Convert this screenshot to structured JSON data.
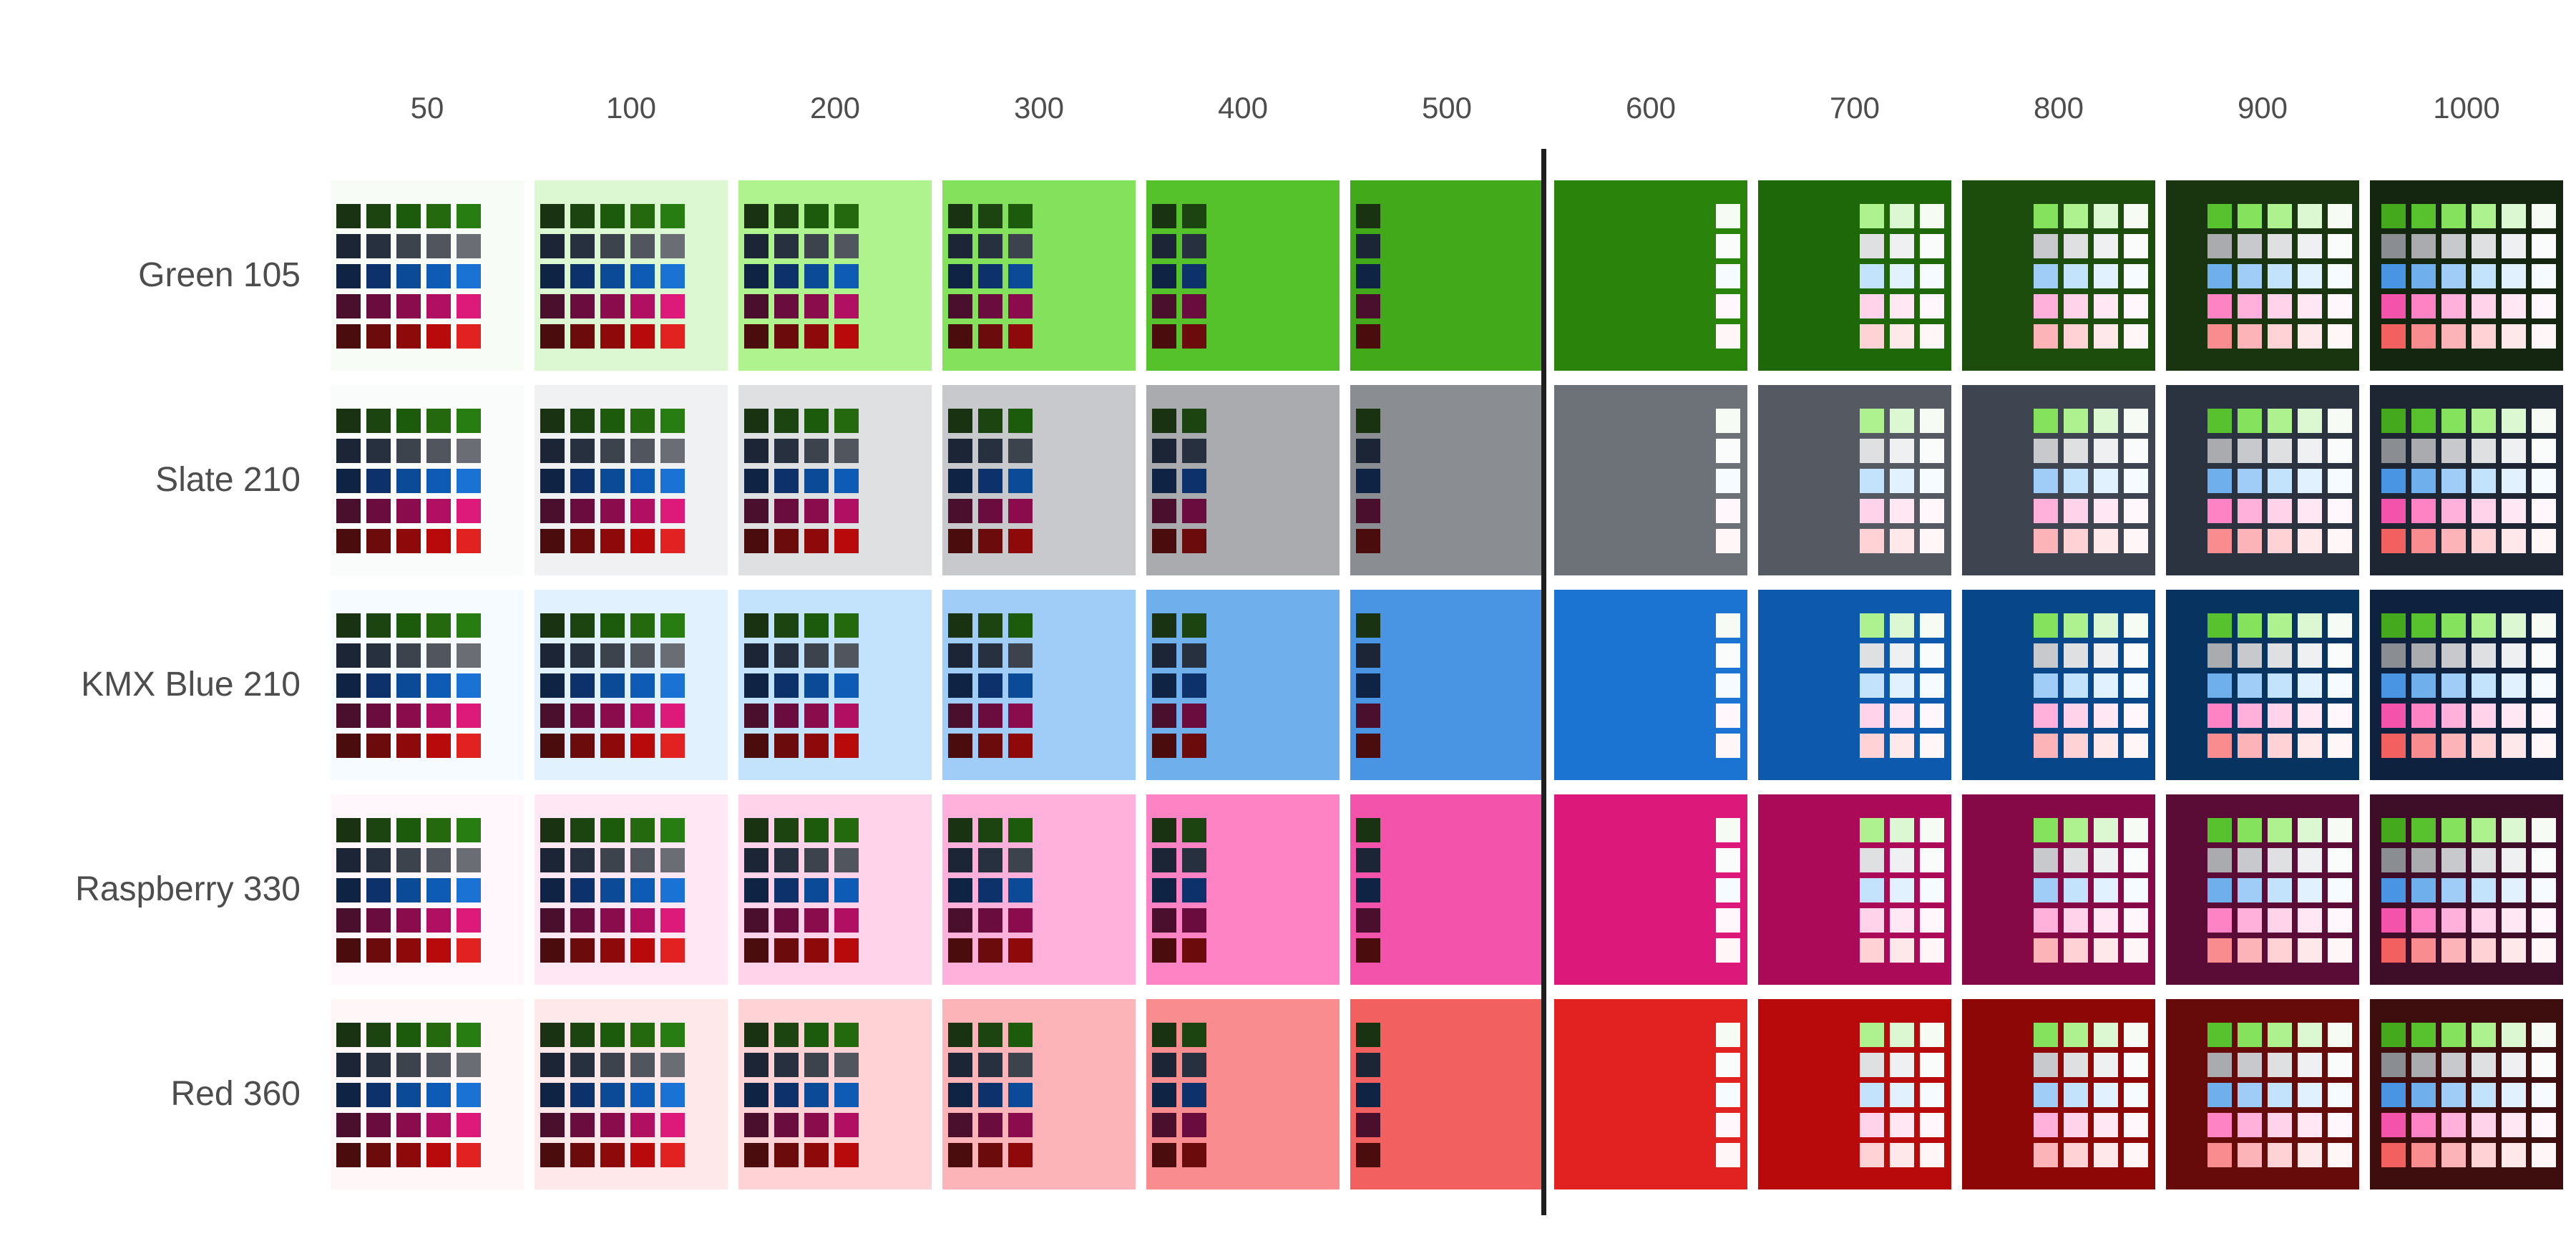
{
  "levels": [
    "50",
    "100",
    "200",
    "300",
    "400",
    "500",
    "600",
    "700",
    "800",
    "900",
    "1000"
  ],
  "divider_after_level": "500",
  "hues": [
    {
      "name": "Green 105",
      "colors": [
        "#f8fcf6",
        "#dcf8d2",
        "#aff38e",
        "#83e15b",
        "#56c22b",
        "#41a91a",
        "#2a840c",
        "#1e680a",
        "#1c4d0c",
        "#19350f",
        "#142510"
      ]
    },
    {
      "name": "Slate 210",
      "colors": [
        "#fafbfb",
        "#f0f1f3",
        "#dfe0e2",
        "#c8c9cc",
        "#a9abaf",
        "#8a8d91",
        "#6d7279",
        "#555a62",
        "#3f4550",
        "#2c3340",
        "#1e2533"
      ]
    },
    {
      "name": "KMX Blue 210",
      "colors": [
        "#f5fbff",
        "#e2f1fe",
        "#c3e2fc",
        "#a0cdf7",
        "#6fb0ec",
        "#4a95e3",
        "#1b73d2",
        "#0d59ad",
        "#074689",
        "#06335f",
        "#0e223f"
      ]
    },
    {
      "name": "Raspberry 330",
      "colors": [
        "#fff7fb",
        "#ffe7f3",
        "#ffd3ea",
        "#ffb1db",
        "#fd83c4",
        "#f353aa",
        "#dc197a",
        "#ab0a59",
        "#850947",
        "#5a0c36",
        "#3e0e28"
      ]
    },
    {
      "name": "Red 360",
      "colors": [
        "#fff7f7",
        "#ffe8e9",
        "#ffd3d6",
        "#fcb4b8",
        "#f98c8f",
        "#f36060",
        "#e22121",
        "#b80a0a",
        "#8e0707",
        "#660a0a",
        "#3e0e0e"
      ]
    }
  ],
  "swatch_matrix": {
    "dark_rows": [
      [
        "#183212",
        "#1c4410",
        "#1c5a0c",
        "#24690e",
        "#277c12"
      ],
      [
        "#1b2535",
        "#27303f",
        "#3d434d",
        "#51565e",
        "#6a6e74"
      ],
      [
        "#0f2444",
        "#0c316b",
        "#0a4a97",
        "#0e5bb5",
        "#1a72d4"
      ],
      [
        "#4a0f2c",
        "#6a0c3e",
        "#8a0c4c",
        "#b10f61",
        "#dd1979"
      ],
      [
        "#4a0c0c",
        "#6c0b0b",
        "#8e0a0a",
        "#b80a0a",
        "#e22121"
      ]
    ],
    "light_rows": [
      [
        "#45a91d",
        "#58c22e",
        "#84e25c",
        "#aef28f",
        "#dcf8d2",
        "#f6fcf3"
      ],
      [
        "#8a8d91",
        "#a9abaf",
        "#c8c9cc",
        "#dfe0e2",
        "#eff0f2",
        "#fafbfb"
      ],
      [
        "#4a95e3",
        "#6fb0ec",
        "#a0cdf7",
        "#c3e2fc",
        "#e2f1fe",
        "#f5fbff"
      ],
      [
        "#f353aa",
        "#fd83c4",
        "#ffb1db",
        "#ffd3ea",
        "#ffe7f3",
        "#fff7fb"
      ],
      [
        "#f36060",
        "#f98c8f",
        "#fcb4b8",
        "#ffd3d6",
        "#ffe8e9",
        "#fff7f7"
      ]
    ]
  }
}
